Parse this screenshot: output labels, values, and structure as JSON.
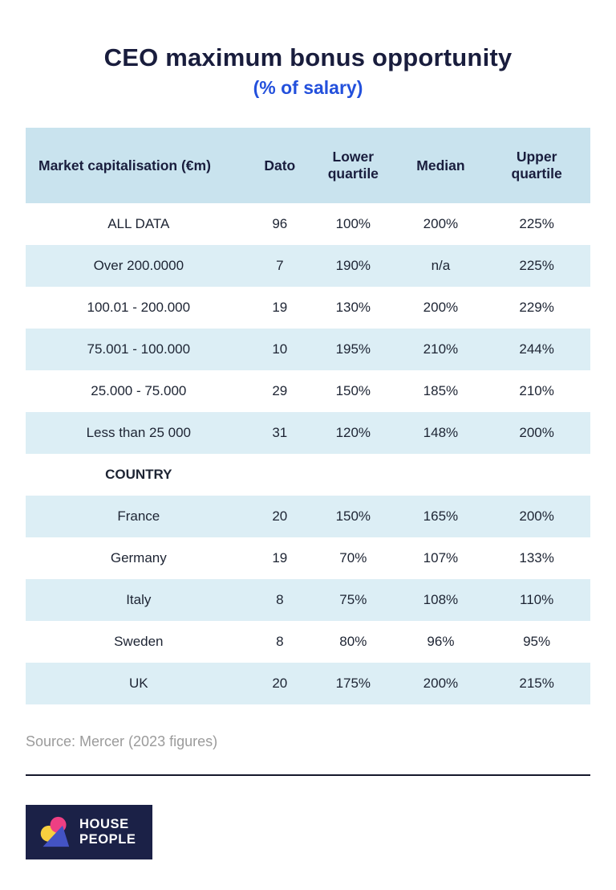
{
  "chart_data": {
    "type": "table",
    "title": "CEO maximum bonus opportunity",
    "subtitle": "(% of salary)",
    "columns": [
      "Market capitalisation (€m)",
      "Dato",
      "Lower quartile",
      "Median",
      "Upper quartile"
    ],
    "rows": [
      {
        "type": "data",
        "cells": [
          "ALL DATA",
          "96",
          "100%",
          "200%",
          "225%"
        ]
      },
      {
        "type": "data",
        "cells": [
          "Over 200.0000",
          "7",
          "190%",
          "n/a",
          "225%"
        ]
      },
      {
        "type": "data",
        "cells": [
          "100.01 - 200.000",
          "19",
          "130%",
          "200%",
          "229%"
        ]
      },
      {
        "type": "data",
        "cells": [
          "75.001 - 100.000",
          "10",
          "195%",
          "210%",
          "244%"
        ]
      },
      {
        "type": "data",
        "cells": [
          "25.000 - 75.000",
          "29",
          "150%",
          "185%",
          "210%"
        ]
      },
      {
        "type": "data",
        "cells": [
          "Less than 25 000",
          "31",
          "120%",
          "148%",
          "200%"
        ]
      },
      {
        "type": "section",
        "cells": [
          "COUNTRY",
          "",
          "",
          "",
          ""
        ]
      },
      {
        "type": "data",
        "cells": [
          "France",
          "20",
          "150%",
          "165%",
          "200%"
        ]
      },
      {
        "type": "data",
        "cells": [
          "Germany",
          "19",
          "70%",
          "107%",
          "133%"
        ]
      },
      {
        "type": "data",
        "cells": [
          "Italy",
          "8",
          "75%",
          "108%",
          "110%"
        ]
      },
      {
        "type": "data",
        "cells": [
          "Sweden",
          "8",
          "80%",
          "96%",
          "95%"
        ]
      },
      {
        "type": "data",
        "cells": [
          "UK",
          "20",
          "175%",
          "200%",
          "215%"
        ]
      }
    ],
    "source": "Source: Mercer (2023 figures)"
  },
  "logo": {
    "line1": "HOUSE",
    "line2": "PEOPLE",
    "mark_icon": "house-people-mark"
  },
  "colors": {
    "title-navy": "#191d3d",
    "accent-blue": "#2350dc",
    "header-bg": "#c9e3ee",
    "stripe-bg": "#dceef5",
    "body-text": "#1d2433",
    "source-gray": "#9b9b9b",
    "divider": "#15182c",
    "logo-bg": "#1b2147",
    "mark-yellow": "#f8cf3f",
    "mark-pink": "#ee3f83",
    "mark-blue": "#4353c4"
  }
}
